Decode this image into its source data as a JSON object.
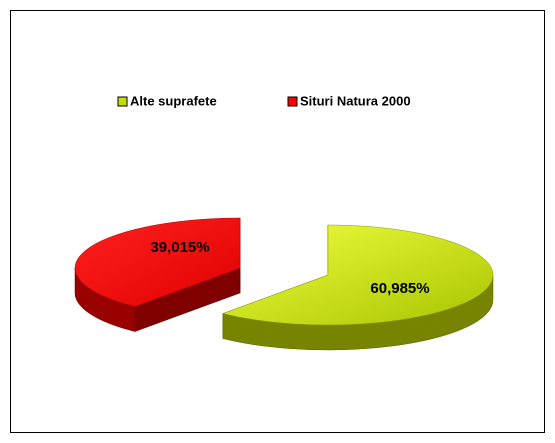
{
  "chart_data": {
    "type": "pie",
    "categories": [
      "Alte suprafete",
      "Situri Natura 2000"
    ],
    "values": [
      60.985,
      39.015
    ],
    "value_labels": [
      "60,985%",
      "39,015%"
    ],
    "colors": [
      "#c4dc00",
      "#ff0000"
    ],
    "legend": "top"
  }
}
